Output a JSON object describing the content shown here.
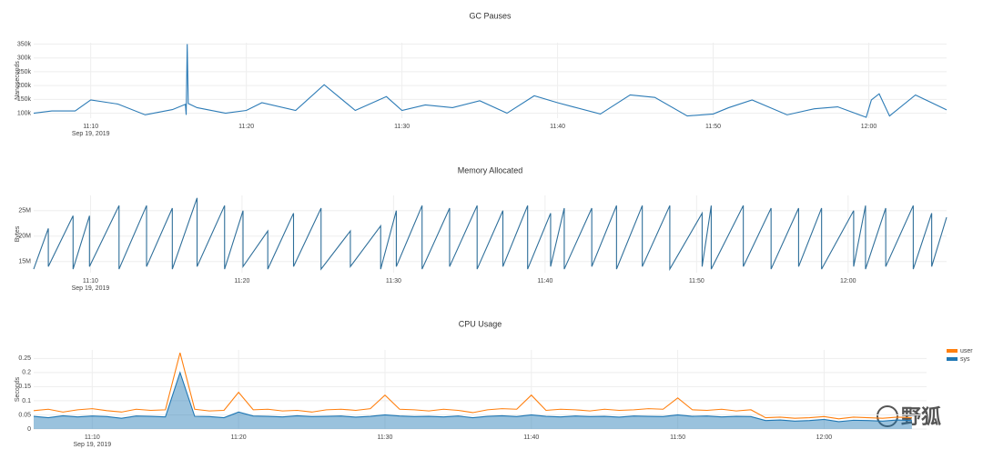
{
  "chart_data": [
    {
      "type": "line",
      "title": "GC Pauses",
      "y_label": "Nanoseconds",
      "date_label": "Sep 19, 2019",
      "grid": true,
      "xlim": [
        "11:06:20",
        "12:05:00"
      ],
      "xticks": [
        "11:10",
        "11:20",
        "11:30",
        "11:40",
        "11:50",
        "12:00"
      ],
      "ylim": [
        82000,
        355000
      ],
      "yticks": [
        {
          "value": 100000,
          "label": "100k"
        },
        {
          "value": 150000,
          "label": "150k"
        },
        {
          "value": 200000,
          "label": "200k"
        },
        {
          "value": 250000,
          "label": "250k"
        },
        {
          "value": 300000,
          "label": "300k"
        },
        {
          "value": 350000,
          "label": "350k"
        }
      ],
      "x": [
        "11:06:20",
        "11:07:30",
        "11:09:00",
        "11:10:00",
        "11:11:45",
        "11:13:30",
        "11:15:15",
        "11:16:05",
        "11:16:08",
        "11:16:12",
        "11:16:16",
        "11:16:50",
        "11:18:40",
        "11:20:00",
        "11:21:00",
        "11:23:10",
        "11:25:00",
        "11:27:00",
        "11:29:00",
        "11:30:00",
        "11:31:30",
        "11:33:15",
        "11:35:00",
        "11:36:45",
        "11:38:30",
        "11:40:00",
        "11:41:00",
        "11:42:45",
        "11:44:40",
        "11:46:15",
        "11:48:20",
        "11:50:00",
        "11:51:00",
        "11:52:30",
        "11:54:45",
        "11:56:30",
        "11:58:00",
        "11:59:50",
        "12:00:10",
        "12:00:40",
        "12:01:20",
        "12:03:00",
        "12:05:00"
      ],
      "series": [
        {
          "name": "gc",
          "color": "#2c7bb6",
          "values": [
            100000,
            108000,
            108000,
            148000,
            133000,
            94000,
            113000,
            132000,
            94000,
            350000,
            135000,
            120000,
            100000,
            110000,
            138000,
            110000,
            203000,
            110000,
            160000,
            110000,
            130000,
            120000,
            145000,
            100000,
            163000,
            138000,
            123000,
            97000,
            166000,
            157000,
            90000,
            97000,
            120000,
            148000,
            94000,
            116000,
            123000,
            85000,
            148000,
            170000,
            90000,
            166000,
            112000
          ]
        }
      ]
    },
    {
      "type": "line",
      "title": "Memory Allocated",
      "y_label": "Bytes",
      "date_label": "Sep 19, 2019",
      "grid": true,
      "xlim": [
        "11:06:15",
        "12:06:30"
      ],
      "xticks": [
        "11:10",
        "11:20",
        "11:30",
        "11:40",
        "11:50",
        "12:00"
      ],
      "ylim": [
        12800000,
        28000000
      ],
      "yticks": [
        {
          "value": 15000000,
          "label": "15M"
        },
        {
          "value": 20000000,
          "label": "20M"
        },
        {
          "value": 25000000,
          "label": "25M"
        }
      ],
      "x": [
        "11:06:15",
        "11:07:13",
        "11:07:13",
        "11:08:51",
        "11:08:51",
        "11:09:56",
        "11:09:56",
        "11:11:53",
        "11:11:53",
        "11:13:42",
        "11:13:42",
        "11:15:24",
        "11:15:24",
        "11:17:02",
        "11:17:02",
        "11:18:51",
        "11:18:51",
        "11:20:04",
        "11:20:04",
        "11:21:42",
        "11:21:42",
        "11:23:24",
        "11:23:24",
        "11:25:13",
        "11:25:13",
        "11:27:09",
        "11:27:09",
        "11:29:09",
        "11:29:09",
        "11:30:11",
        "11:30:11",
        "11:31:53",
        "11:31:53",
        "11:33:42",
        "11:33:42",
        "11:35:31",
        "11:35:31",
        "11:37:13",
        "11:37:13",
        "11:38:51",
        "11:38:51",
        "11:40:22",
        "11:40:22",
        "11:41:16",
        "11:41:16",
        "11:43:05",
        "11:43:05",
        "11:44:43",
        "11:44:43",
        "11:46:25",
        "11:46:25",
        "11:48:14",
        "11:48:14",
        "11:50:22",
        "11:50:22",
        "11:50:58",
        "11:50:58",
        "11:53:05",
        "11:53:05",
        "11:54:55",
        "11:54:55",
        "11:56:44",
        "11:56:44",
        "11:58:15",
        "11:58:15",
        "12:00:22",
        "12:00:22",
        "12:01:09",
        "12:01:09",
        "12:02:29",
        "12:02:29",
        "12:04:18",
        "12:04:18",
        "12:05:31",
        "12:05:31",
        "12:06:30"
      ],
      "series": [
        {
          "name": "bytes",
          "color": "#2f6f9a",
          "values": [
            13500000,
            21500000,
            14000000,
            24000000,
            13500000,
            24000000,
            14000000,
            26000000,
            13500000,
            26000000,
            14000000,
            25500000,
            13500000,
            27500000,
            14000000,
            26000000,
            13500000,
            25000000,
            14000000,
            21000000,
            13500000,
            24500000,
            14000000,
            25500000,
            13500000,
            21000000,
            14000000,
            22000000,
            13500000,
            25000000,
            14000000,
            26000000,
            13500000,
            25500000,
            14000000,
            26000000,
            13500000,
            25000000,
            14000000,
            26000000,
            13500000,
            24500000,
            14000000,
            25500000,
            13500000,
            25500000,
            14000000,
            26000000,
            13500000,
            26000000,
            14000000,
            26000000,
            13500000,
            24500000,
            14000000,
            26000000,
            13500000,
            26000000,
            14000000,
            25500000,
            13500000,
            25500000,
            14000000,
            25500000,
            13500000,
            25000000,
            14000000,
            26000000,
            13500000,
            25500000,
            14000000,
            26000000,
            13500000,
            24500000,
            14000000,
            23700000
          ]
        }
      ]
    },
    {
      "type": "line",
      "title": "CPU Usage",
      "y_label": "Seconds",
      "date_label": "Sep 19, 2019",
      "grid": true,
      "legend": "right",
      "xlim": [
        "11:06:00",
        "12:07:00"
      ],
      "xticks": [
        "11:10",
        "11:20",
        "11:30",
        "11:40",
        "11:50",
        "12:00"
      ],
      "ylim": [
        0,
        0.28
      ],
      "yticks": [
        0,
        0.05,
        0.1,
        0.15,
        0.2,
        0.25
      ],
      "x": [
        "11:06",
        "11:07",
        "11:08",
        "11:09",
        "11:10",
        "11:11",
        "11:12",
        "11:13",
        "11:14",
        "11:15",
        "11:16",
        "11:17",
        "11:18",
        "11:19",
        "11:20",
        "11:21",
        "11:22",
        "11:23",
        "11:24",
        "11:25",
        "11:26",
        "11:27",
        "11:28",
        "11:29",
        "11:30",
        "11:31",
        "11:32",
        "11:33",
        "11:34",
        "11:35",
        "11:36",
        "11:37",
        "11:38",
        "11:39",
        "11:40",
        "11:41",
        "11:42",
        "11:43",
        "11:44",
        "11:45",
        "11:46",
        "11:47",
        "11:48",
        "11:49",
        "11:50",
        "11:51",
        "11:52",
        "11:53",
        "11:54",
        "11:55",
        "11:56",
        "11:57",
        "11:58",
        "11:59",
        "12:00",
        "12:01",
        "12:02",
        "12:03",
        "12:04",
        "12:05",
        "12:06"
      ],
      "series": [
        {
          "name": "user",
          "color": "#ff7f0e",
          "fill": false,
          "values": [
            0.065,
            0.07,
            0.06,
            0.068,
            0.072,
            0.065,
            0.06,
            0.07,
            0.066,
            0.068,
            0.27,
            0.07,
            0.064,
            0.066,
            0.13,
            0.068,
            0.07,
            0.064,
            0.066,
            0.06,
            0.068,
            0.07,
            0.066,
            0.072,
            0.12,
            0.07,
            0.068,
            0.064,
            0.07,
            0.066,
            0.058,
            0.068,
            0.072,
            0.07,
            0.12,
            0.066,
            0.07,
            0.068,
            0.064,
            0.07,
            0.066,
            0.068,
            0.072,
            0.07,
            0.11,
            0.068,
            0.066,
            0.07,
            0.064,
            0.068,
            0.04,
            0.042,
            0.038,
            0.04,
            0.044,
            0.036,
            0.042,
            0.04,
            0.038,
            0.042,
            0.04
          ]
        },
        {
          "name": "sys",
          "color": "#1f77b4",
          "fill": true,
          "values": [
            0.045,
            0.04,
            0.047,
            0.043,
            0.046,
            0.044,
            0.038,
            0.046,
            0.045,
            0.043,
            0.2,
            0.045,
            0.044,
            0.04,
            0.06,
            0.046,
            0.045,
            0.043,
            0.047,
            0.044,
            0.045,
            0.046,
            0.042,
            0.045,
            0.05,
            0.046,
            0.044,
            0.045,
            0.043,
            0.046,
            0.04,
            0.045,
            0.047,
            0.044,
            0.05,
            0.045,
            0.043,
            0.046,
            0.044,
            0.045,
            0.042,
            0.046,
            0.045,
            0.044,
            0.05,
            0.045,
            0.046,
            0.043,
            0.045,
            0.044,
            0.03,
            0.032,
            0.028,
            0.03,
            0.034,
            0.026,
            0.031,
            0.03,
            0.028,
            0.032,
            0.03
          ]
        }
      ]
    }
  ],
  "watermark": "野狐"
}
